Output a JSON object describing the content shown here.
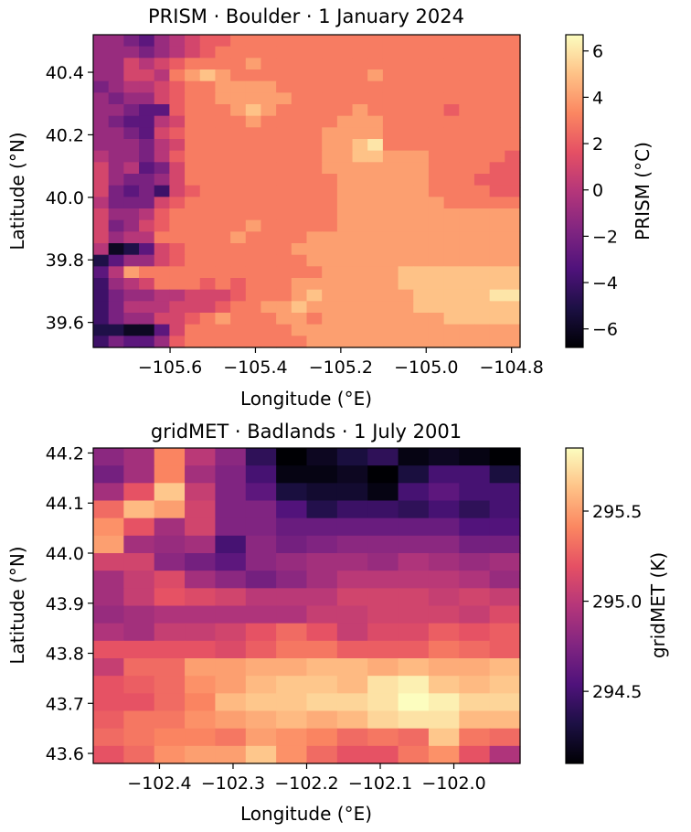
{
  "colors": [
    "#000004",
    "#1c1044",
    "#4f127b",
    "#812581",
    "#b5367a",
    "#e55064",
    "#fb8761",
    "#fec287",
    "#fcfdbf"
  ],
  "chart_data": [
    {
      "type": "heatmap",
      "title": "PRISM · Boulder · 1 January 2024",
      "xlabel": "Longitude (°E)",
      "ylabel": "Latitude (°N)",
      "colorbar_label": "PRISM (°C)",
      "colormap": "magma",
      "xlim": [
        -105.78,
        -104.78
      ],
      "ylim": [
        39.52,
        40.52
      ],
      "vmin": -6.8,
      "vmax": 6.7,
      "x_ticks": [
        -105.6,
        -105.4,
        -105.2,
        -105.0,
        -104.8
      ],
      "x_tick_labels": [
        "−105.6",
        "−105.4",
        "−105.2",
        "−105.0",
        "−104.8"
      ],
      "y_ticks": [
        39.6,
        39.8,
        40.0,
        40.2,
        40.4
      ],
      "y_tick_labels": [
        "39.6",
        "39.8",
        "40.0",
        "40.2",
        "40.4"
      ],
      "cbar_ticks": [
        -6,
        -4,
        -2,
        0,
        2,
        4,
        6
      ],
      "cbar_tick_labels": [
        "−6",
        "−4",
        "−2",
        "0",
        "2",
        "4",
        "6"
      ],
      "grid_rows_top_to_bottom": [
        [
          -1,
          -1,
          -2,
          -3,
          -1,
          0,
          1,
          2,
          2,
          3,
          3,
          3,
          3,
          3,
          3,
          3,
          3,
          3,
          3,
          3,
          3,
          3,
          3,
          3,
          3,
          3,
          3,
          3
        ],
        [
          -1,
          -1,
          -1,
          -2,
          -1,
          0,
          1,
          2,
          3,
          3,
          3,
          3,
          3,
          3,
          3,
          3,
          3,
          3,
          3,
          3,
          3,
          3,
          3,
          3,
          3,
          3,
          3,
          3
        ],
        [
          -1,
          -1,
          1,
          0,
          1,
          2,
          3,
          3,
          3,
          3,
          4,
          3,
          3,
          3,
          3,
          3,
          3,
          3,
          3,
          3,
          3,
          3,
          3,
          3,
          3,
          3,
          3,
          3
        ],
        [
          -1,
          -1,
          1,
          1,
          0,
          3,
          4,
          5,
          4,
          3,
          3,
          3,
          3,
          3,
          3,
          3,
          3,
          3,
          4,
          3,
          3,
          3,
          3,
          3,
          3,
          3,
          3,
          3
        ],
        [
          -2,
          -1,
          0,
          0,
          1,
          2,
          3,
          3,
          4,
          4,
          4,
          4,
          3,
          3,
          3,
          3,
          3,
          3,
          3,
          3,
          3,
          3,
          3,
          3,
          3,
          3,
          3,
          3
        ],
        [
          -1,
          -2,
          -1,
          -1,
          1,
          2,
          3,
          3,
          4,
          4,
          4,
          4,
          4,
          3,
          3,
          3,
          3,
          3,
          3,
          3,
          3,
          3,
          3,
          3,
          3,
          3,
          3,
          3
        ],
        [
          -1,
          -1,
          -2,
          -3,
          -3,
          2,
          3,
          3,
          3,
          4,
          5,
          4,
          3,
          3,
          3,
          3,
          3,
          4,
          3,
          3,
          3,
          3,
          3,
          2,
          3,
          3,
          3,
          3
        ],
        [
          -1,
          -2,
          -3,
          -3,
          0,
          1,
          3,
          3,
          3,
          3,
          4,
          3,
          3,
          3,
          3,
          3,
          4,
          4,
          4,
          3,
          3,
          3,
          3,
          3,
          3,
          3,
          3,
          3
        ],
        [
          -1,
          -1,
          -2,
          -3,
          1,
          2,
          3,
          3,
          3,
          3,
          3,
          3,
          3,
          3,
          3,
          4,
          4,
          4,
          4,
          3,
          3,
          3,
          3,
          3,
          3,
          3,
          3,
          3
        ],
        [
          -1,
          -1,
          -1,
          -2,
          0,
          1,
          3,
          3,
          3,
          3,
          3,
          3,
          3,
          3,
          3,
          4,
          4,
          5,
          6,
          3,
          3,
          3,
          3,
          3,
          3,
          3,
          3,
          3
        ],
        [
          0,
          -1,
          -1,
          -2,
          0,
          2,
          3,
          3,
          3,
          3,
          3,
          3,
          3,
          3,
          3,
          4,
          4,
          5,
          5,
          4,
          4,
          4,
          3,
          3,
          3,
          3,
          3,
          2
        ],
        [
          1,
          -1,
          0,
          -3,
          -2,
          1,
          3,
          3,
          3,
          3,
          3,
          3,
          3,
          3,
          3,
          4,
          4,
          4,
          4,
          4,
          4,
          4,
          3,
          3,
          3,
          3,
          2,
          2
        ],
        [
          1,
          -1,
          -2,
          -2,
          -1,
          1,
          3,
          3,
          3,
          3,
          3,
          3,
          3,
          3,
          3,
          3,
          4,
          4,
          4,
          4,
          4,
          4,
          3,
          3,
          3,
          2,
          2,
          2
        ],
        [
          1,
          -2,
          -3,
          -2,
          -4,
          1,
          2,
          3,
          3,
          3,
          3,
          3,
          3,
          3,
          3,
          3,
          4,
          4,
          4,
          4,
          4,
          4,
          3,
          3,
          3,
          3,
          2,
          2
        ],
        [
          0,
          -2,
          -2,
          -2,
          1,
          2,
          3,
          3,
          3,
          3,
          3,
          3,
          3,
          3,
          3,
          3,
          4,
          4,
          4,
          4,
          4,
          4,
          4,
          3,
          3,
          3,
          3,
          3
        ],
        [
          1,
          -1,
          -1,
          0,
          2,
          3,
          3,
          3,
          3,
          3,
          3,
          3,
          3,
          3,
          3,
          3,
          4,
          4,
          4,
          4,
          4,
          4,
          4,
          4,
          4,
          4,
          4,
          4
        ],
        [
          1,
          -2,
          -1,
          1,
          2,
          3,
          3,
          3,
          3,
          3,
          4,
          3,
          3,
          3,
          3,
          3,
          4,
          4,
          4,
          4,
          4,
          4,
          4,
          4,
          4,
          4,
          4,
          4
        ],
        [
          1,
          -1,
          0,
          0,
          3,
          3,
          3,
          3,
          3,
          4,
          3,
          3,
          3,
          3,
          4,
          4,
          4,
          4,
          4,
          4,
          4,
          4,
          4,
          4,
          4,
          4,
          4,
          4
        ],
        [
          0,
          -6,
          -5,
          -3,
          1,
          2,
          3,
          3,
          3,
          3,
          3,
          3,
          3,
          4,
          4,
          4,
          4,
          4,
          4,
          4,
          4,
          4,
          4,
          4,
          4,
          4,
          4,
          4
        ],
        [
          -5,
          -3,
          -1,
          -1,
          1,
          2,
          3,
          3,
          3,
          3,
          3,
          3,
          3,
          3,
          4,
          4,
          4,
          4,
          4,
          4,
          4,
          4,
          4,
          4,
          4,
          4,
          4,
          4
        ],
        [
          -3,
          0,
          4,
          3,
          3,
          3,
          3,
          3,
          3,
          3,
          3,
          3,
          3,
          3,
          3,
          4,
          4,
          4,
          4,
          4,
          5,
          5,
          5,
          5,
          5,
          5,
          5,
          5
        ],
        [
          -4,
          -1,
          0,
          1,
          3,
          3,
          3,
          2,
          3,
          2,
          3,
          3,
          3,
          4,
          4,
          4,
          4,
          4,
          4,
          4,
          5,
          5,
          5,
          5,
          5,
          5,
          5,
          5
        ],
        [
          -4,
          -2,
          -1,
          -1,
          0,
          0,
          1,
          1,
          1,
          2,
          3,
          3,
          3,
          4,
          5,
          4,
          4,
          4,
          4,
          4,
          4,
          5,
          5,
          5,
          5,
          5,
          6,
          6
        ],
        [
          -4,
          -2,
          0,
          0,
          0,
          1,
          1,
          1,
          2,
          3,
          3,
          4,
          4,
          5,
          4,
          4,
          4,
          4,
          4,
          4,
          4,
          5,
          5,
          5,
          5,
          5,
          5,
          5
        ],
        [
          -4,
          -2,
          -1,
          -1,
          1,
          1,
          2,
          3,
          4,
          3,
          3,
          3,
          4,
          4,
          3,
          4,
          4,
          4,
          4,
          4,
          4,
          4,
          4,
          5,
          5,
          5,
          5,
          5
        ],
        [
          -5,
          -5,
          -6,
          -6,
          -3,
          1,
          3,
          3,
          3,
          3,
          3,
          3,
          3,
          4,
          4,
          4,
          4,
          4,
          4,
          4,
          4,
          4,
          4,
          4,
          4,
          4,
          4,
          4
        ],
        [
          -4,
          -2,
          -3,
          -3,
          -1,
          2,
          3,
          3,
          3,
          3,
          3,
          3,
          3,
          3,
          4,
          4,
          4,
          4,
          4,
          4,
          4,
          4,
          4,
          4,
          4,
          4,
          4,
          4
        ]
      ]
    },
    {
      "type": "heatmap",
      "title": "gridMET · Badlands · 1 July 2001",
      "xlabel": "Longitude (°E)",
      "ylabel": "Latitude (°N)",
      "colorbar_label": "gridMET (K)",
      "colormap": "magma",
      "xlim": [
        -102.49,
        -101.91
      ],
      "ylim": [
        43.58,
        44.21
      ],
      "vmin": 294.1,
      "vmax": 295.85,
      "x_ticks": [
        -102.4,
        -102.3,
        -102.2,
        -102.1,
        -102.0
      ],
      "x_tick_labels": [
        "−102.4",
        "−102.3",
        "−102.2",
        "−102.1",
        "−102.0"
      ],
      "y_ticks": [
        43.6,
        43.7,
        43.8,
        43.9,
        44.0,
        44.1,
        44.2
      ],
      "y_tick_labels": [
        "43.6",
        "43.7",
        "43.8",
        "43.9",
        "44.0",
        "44.1",
        "44.2"
      ],
      "cbar_ticks": [
        294.5,
        295.0,
        295.5
      ],
      "cbar_tick_labels": [
        "294.5",
        "295.0",
        "295.5"
      ],
      "grid_rows_top_to_bottom": [
        [
          294.8,
          294.9,
          295.4,
          295.0,
          294.8,
          294.4,
          294.1,
          294.2,
          294.3,
          294.4,
          294.15,
          294.2,
          294.15,
          294.1
        ],
        [
          294.7,
          294.9,
          295.4,
          294.9,
          294.75,
          294.5,
          294.15,
          294.15,
          294.2,
          294.1,
          294.3,
          294.5,
          294.5,
          294.3
        ],
        [
          294.9,
          295.2,
          295.65,
          295.05,
          294.75,
          294.6,
          294.3,
          294.25,
          294.25,
          294.15,
          294.5,
          294.6,
          294.5,
          294.5
        ],
        [
          295.3,
          295.6,
          295.5,
          295.1,
          294.75,
          294.75,
          294.55,
          294.35,
          294.45,
          294.45,
          294.4,
          294.5,
          294.4,
          294.5
        ],
        [
          295.45,
          295.2,
          294.9,
          295.1,
          294.75,
          294.75,
          294.65,
          294.65,
          294.65,
          294.65,
          294.65,
          294.65,
          294.55,
          294.55
        ],
        [
          295.5,
          294.9,
          294.85,
          294.9,
          294.5,
          294.8,
          294.7,
          294.75,
          294.8,
          294.8,
          294.8,
          294.8,
          294.7,
          294.7
        ],
        [
          295.1,
          295.1,
          294.8,
          294.7,
          294.6,
          294.8,
          294.85,
          294.9,
          294.9,
          294.85,
          294.95,
          294.9,
          294.85,
          294.9
        ],
        [
          294.9,
          295.05,
          295.15,
          294.9,
          294.8,
          294.7,
          294.8,
          294.9,
          295.0,
          295.0,
          295.0,
          295.0,
          294.95,
          294.85
        ],
        [
          294.9,
          295.05,
          295.2,
          295.15,
          295.1,
          295.0,
          295.0,
          295.0,
          295.1,
          295.1,
          295.1,
          295.05,
          295.1,
          295.05
        ],
        [
          294.85,
          294.9,
          294.95,
          294.95,
          294.95,
          294.95,
          294.95,
          295.05,
          295.05,
          295.1,
          295.1,
          295.1,
          295.05,
          295.15
        ],
        [
          294.95,
          294.9,
          295.05,
          295.05,
          295.1,
          295.2,
          295.3,
          295.2,
          295.05,
          295.15,
          295.15,
          295.25,
          295.2,
          295.25
        ],
        [
          295.2,
          295.2,
          295.2,
          295.2,
          295.15,
          295.25,
          295.35,
          295.35,
          295.25,
          295.25,
          295.25,
          295.35,
          295.3,
          295.25
        ],
        [
          295.05,
          295.3,
          295.3,
          295.5,
          295.5,
          295.55,
          295.55,
          295.6,
          295.6,
          295.55,
          295.6,
          295.55,
          295.55,
          295.6
        ],
        [
          295.2,
          295.25,
          295.3,
          295.45,
          295.5,
          295.6,
          295.65,
          295.65,
          295.6,
          295.75,
          295.8,
          295.65,
          295.6,
          295.65
        ],
        [
          295.2,
          295.2,
          295.3,
          295.4,
          295.6,
          295.65,
          295.65,
          295.7,
          295.7,
          295.75,
          295.85,
          295.8,
          295.7,
          295.7
        ],
        [
          295.25,
          295.35,
          295.35,
          295.45,
          295.5,
          295.55,
          295.6,
          295.55,
          295.6,
          295.7,
          295.75,
          295.75,
          295.6,
          295.6
        ],
        [
          295.3,
          295.35,
          295.4,
          295.4,
          295.35,
          295.5,
          295.45,
          295.4,
          295.3,
          295.35,
          295.3,
          295.65,
          295.35,
          295.3
        ],
        [
          295.2,
          295.3,
          295.45,
          295.5,
          295.5,
          295.65,
          295.45,
          295.3,
          295.2,
          295.2,
          295.35,
          295.45,
          295.2,
          294.95
        ]
      ]
    }
  ]
}
